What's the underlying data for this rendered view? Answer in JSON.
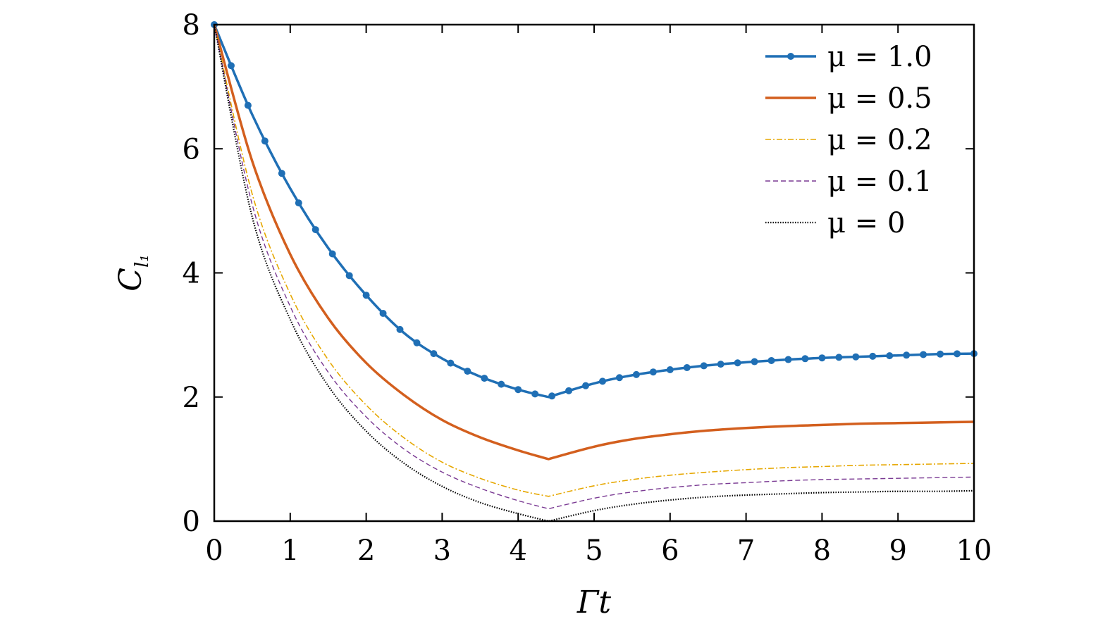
{
  "chart_data": {
    "type": "line",
    "xlabel": "Γt",
    "ylabel": "C",
    "ylabel_subscript": "l₁",
    "xlim": [
      0,
      10
    ],
    "ylim": [
      0,
      8
    ],
    "xticks": [
      "0",
      "1",
      "2",
      "3",
      "4",
      "5",
      "6",
      "7",
      "8",
      "9",
      "10"
    ],
    "yticks": [
      "0",
      "2",
      "4",
      "6",
      "8"
    ],
    "grid": false,
    "legend_position": "top-right",
    "x": [
      0,
      0.5,
      1,
      1.5,
      2,
      2.5,
      3,
      3.5,
      4,
      4.4,
      5,
      5.5,
      6,
      6.5,
      7,
      7.5,
      8,
      8.5,
      9,
      9.5,
      10
    ],
    "series": [
      {
        "name": "μ = 1.0",
        "color": "#1f6fb5",
        "style": "solid-markers",
        "values": [
          8,
          6.55,
          5.36,
          4.4,
          3.64,
          3.03,
          2.62,
          2.33,
          2.12,
          2.0,
          2.22,
          2.35,
          2.44,
          2.51,
          2.56,
          2.6,
          2.63,
          2.65,
          2.67,
          2.69,
          2.7
        ]
      },
      {
        "name": "μ = 0.5",
        "color": "#d35f1e",
        "style": "solid",
        "values": [
          8,
          5.8,
          4.3,
          3.27,
          2.55,
          2.03,
          1.63,
          1.35,
          1.14,
          1.0,
          1.2,
          1.32,
          1.4,
          1.46,
          1.5,
          1.53,
          1.55,
          1.57,
          1.58,
          1.59,
          1.6
        ]
      },
      {
        "name": "μ = 0.2",
        "color": "#e6a700",
        "style": "dashdot",
        "values": [
          8,
          5.27,
          3.66,
          2.6,
          1.87,
          1.34,
          0.95,
          0.69,
          0.5,
          0.4,
          0.57,
          0.67,
          0.74,
          0.79,
          0.83,
          0.86,
          0.88,
          0.9,
          0.91,
          0.92,
          0.93
        ]
      },
      {
        "name": "μ = 0.1",
        "color": "#7a3a93",
        "style": "dashed",
        "values": [
          8,
          5.1,
          3.46,
          2.4,
          1.68,
          1.16,
          0.79,
          0.53,
          0.33,
          0.2,
          0.37,
          0.47,
          0.54,
          0.59,
          0.62,
          0.65,
          0.67,
          0.68,
          0.69,
          0.7,
          0.71
        ]
      },
      {
        "name": "μ = 0",
        "color": "#000000",
        "style": "dotted",
        "values": [
          8,
          4.9,
          3.25,
          2.18,
          1.45,
          0.93,
          0.56,
          0.3,
          0.12,
          0.0,
          0.17,
          0.27,
          0.34,
          0.39,
          0.42,
          0.44,
          0.46,
          0.47,
          0.48,
          0.48,
          0.49
        ]
      }
    ]
  }
}
